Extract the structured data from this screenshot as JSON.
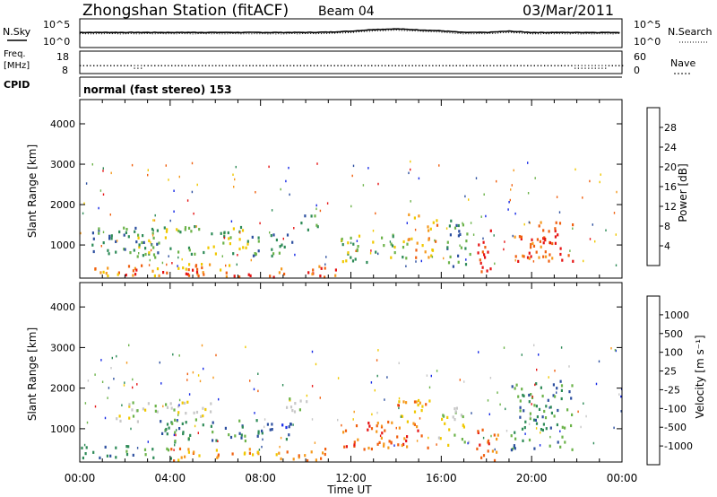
{
  "header": {
    "station": "Zhongshan Station (fitACF)",
    "beam": "Beam 04",
    "date": "03/Mar/2011"
  },
  "strips": {
    "nsky_label": "N.Sky",
    "nsearch_label": "N.Search",
    "log_ticks": [
      "10^5",
      "10^0"
    ],
    "freq_label": "Freq.",
    "freq_unit": "[MHz]",
    "freq_ticks": [
      "18",
      "8"
    ],
    "nave_label": "Nave",
    "nave_ticks": [
      "60",
      "0"
    ],
    "cpid_label": "CPID",
    "cpid_value": "normal (fast stereo) 153"
  },
  "colors": {
    "power": [
      "#1428e6",
      "#2d50a0",
      "#2e8b57",
      "#6cb34a",
      "#f0c800",
      "#f59a1e",
      "#f06010",
      "#e61414"
    ],
    "velocity": [
      "#e61414",
      "#f06010",
      "#f59a1e",
      "#f0c800",
      "#c8c8c8",
      "#6cb34a",
      "#2e8b57",
      "#2d50a0",
      "#1428e6"
    ]
  },
  "chart_data": [
    {
      "type": "line",
      "title": "N.Sky / N.Search",
      "x": [
        "00:00",
        "02:00",
        "04:00",
        "06:00",
        "08:00",
        "10:00",
        "11:00",
        "12:00",
        "13:00",
        "14:00",
        "15:00",
        "16:00",
        "17:00",
        "18:00",
        "19:00",
        "20:00",
        "22:00",
        "24:00"
      ],
      "series": [
        {
          "name": "N.Sky",
          "values": [
            3.0,
            3.0,
            3.0,
            3.0,
            3.0,
            3.0,
            3.1,
            3.4,
            3.9,
            4.1,
            3.8,
            3.5,
            3.0,
            3.0,
            3.4,
            3.0,
            3.0,
            3.0
          ]
        },
        {
          "name": "N.Search",
          "values": [
            2.6,
            2.6,
            2.6,
            2.6,
            2.6,
            2.6,
            2.7,
            3.0,
            3.5,
            3.7,
            3.4,
            3.1,
            2.6,
            2.6,
            3.0,
            2.6,
            2.6,
            2.6
          ]
        }
      ]
    },
    {
      "type": "scatter",
      "title": "Freq. / Nave",
      "xlabel": "Time UT",
      "x": [
        "00:00",
        "01:00",
        "02:00",
        "02:30",
        "03:00",
        "06:00",
        "09:00",
        "12:00",
        "15:00",
        "18:00",
        "21:00",
        "22:40",
        "24:00"
      ],
      "series": [
        {
          "name": "Freq.",
          "values": [
            12.5,
            12.5,
            12.5,
            10.5,
            12.5,
            12.5,
            12.5,
            12.5,
            12.5,
            12.5,
            12.5,
            10.5,
            12.5
          ]
        },
        {
          "name": "Nave",
          "values": [
            28,
            28,
            28,
            28,
            28,
            28,
            28,
            28,
            28,
            28,
            28,
            28,
            28
          ]
        }
      ]
    },
    {
      "type": "heatmap",
      "title": "Power [dB]",
      "xlabel": "Time UT",
      "ylabel": "Slant Range [km]",
      "x_ticks": [
        "00:00",
        "04:00",
        "08:00",
        "12:00",
        "16:00",
        "20:00",
        "00:00"
      ],
      "y_ticks": [
        "1000",
        "2000",
        "3000",
        "4000"
      ],
      "xlim": [
        0,
        24
      ],
      "ylim": [
        180,
        4600
      ],
      "colorbar_ticks": [
        "4",
        "8",
        "12",
        "16",
        "20",
        "24",
        "28"
      ],
      "colorbar_label": "Power [dB]",
      "regions": [
        {
          "t0": 0.0,
          "t1": 6.8,
          "r0": 250,
          "r1": 560,
          "level": 5
        },
        {
          "t0": 2.0,
          "t1": 5.5,
          "r0": 250,
          "r1": 450,
          "level": 7
        },
        {
          "t0": 6.8,
          "t1": 8.6,
          "r0": 220,
          "r1": 420,
          "level": 7
        },
        {
          "t0": 8.6,
          "t1": 11.5,
          "r0": 230,
          "r1": 520,
          "level": 6
        },
        {
          "t0": 0.5,
          "t1": 3.5,
          "r0": 700,
          "r1": 1500,
          "level": 2
        },
        {
          "t0": 2.5,
          "t1": 7.5,
          "r0": 800,
          "r1": 1500,
          "level": 3
        },
        {
          "t0": 7.5,
          "t1": 9.5,
          "r0": 700,
          "r1": 1300,
          "level": 2
        },
        {
          "t0": 11.5,
          "t1": 14.5,
          "r0": 600,
          "r1": 1300,
          "level": 3
        },
        {
          "t0": 14.5,
          "t1": 15.8,
          "r0": 700,
          "r1": 1800,
          "level": 5
        },
        {
          "t0": 17.5,
          "t1": 18.3,
          "r0": 300,
          "r1": 1400,
          "level": 7
        },
        {
          "t0": 19.2,
          "t1": 21.8,
          "r0": 600,
          "r1": 1600,
          "level": 6
        },
        {
          "t0": 19.8,
          "t1": 21.2,
          "r0": 800,
          "r1": 1300,
          "level": 7
        },
        {
          "t0": 16.2,
          "t1": 17.3,
          "r0": 500,
          "r1": 1800,
          "level": 2
        },
        {
          "t0": 9.5,
          "t1": 10.5,
          "r0": 1400,
          "r1": 1800,
          "level": 2
        }
      ]
    },
    {
      "type": "heatmap",
      "title": "Velocity [m s^-1]",
      "xlabel": "Time UT",
      "ylabel": "Slant Range [km]",
      "x_ticks": [
        "00:00",
        "04:00",
        "08:00",
        "12:00",
        "16:00",
        "20:00",
        "00:00"
      ],
      "y_ticks": [
        "1000",
        "2000",
        "3000",
        "4000"
      ],
      "xlim": [
        0,
        24
      ],
      "ylim": [
        180,
        4600
      ],
      "colorbar_ticks": [
        "1000",
        "500",
        "100",
        "25",
        "-25",
        "-100",
        "-500",
        "-1000"
      ],
      "colorbar_label": "Velocity [m s^-1]",
      "regions": [
        {
          "t0": 0.0,
          "t1": 4.0,
          "r0": 250,
          "r1": 600,
          "level": 6
        },
        {
          "t0": 4.0,
          "t1": 11.0,
          "r0": 220,
          "r1": 550,
          "level": 2
        },
        {
          "t0": 1.5,
          "t1": 6.0,
          "r0": 1200,
          "r1": 1700,
          "level": 4
        },
        {
          "t0": 3.5,
          "t1": 8.0,
          "r0": 700,
          "r1": 1300,
          "level": 6
        },
        {
          "t0": 8.0,
          "t1": 9.5,
          "r0": 700,
          "r1": 1200,
          "level": 7
        },
        {
          "t0": 11.5,
          "t1": 15.5,
          "r0": 500,
          "r1": 1200,
          "level": 1
        },
        {
          "t0": 14.0,
          "t1": 15.5,
          "r0": 1100,
          "r1": 1800,
          "level": 2
        },
        {
          "t0": 17.5,
          "t1": 18.5,
          "r0": 200,
          "r1": 1200,
          "level": 1
        },
        {
          "t0": 19.0,
          "t1": 21.8,
          "r0": 500,
          "r1": 2200,
          "level": 6
        },
        {
          "t0": 15.8,
          "t1": 17.2,
          "r0": 600,
          "r1": 1600,
          "level": 4
        },
        {
          "t0": 9.0,
          "t1": 10.5,
          "r0": 1400,
          "r1": 1800,
          "level": 4
        }
      ]
    }
  ]
}
